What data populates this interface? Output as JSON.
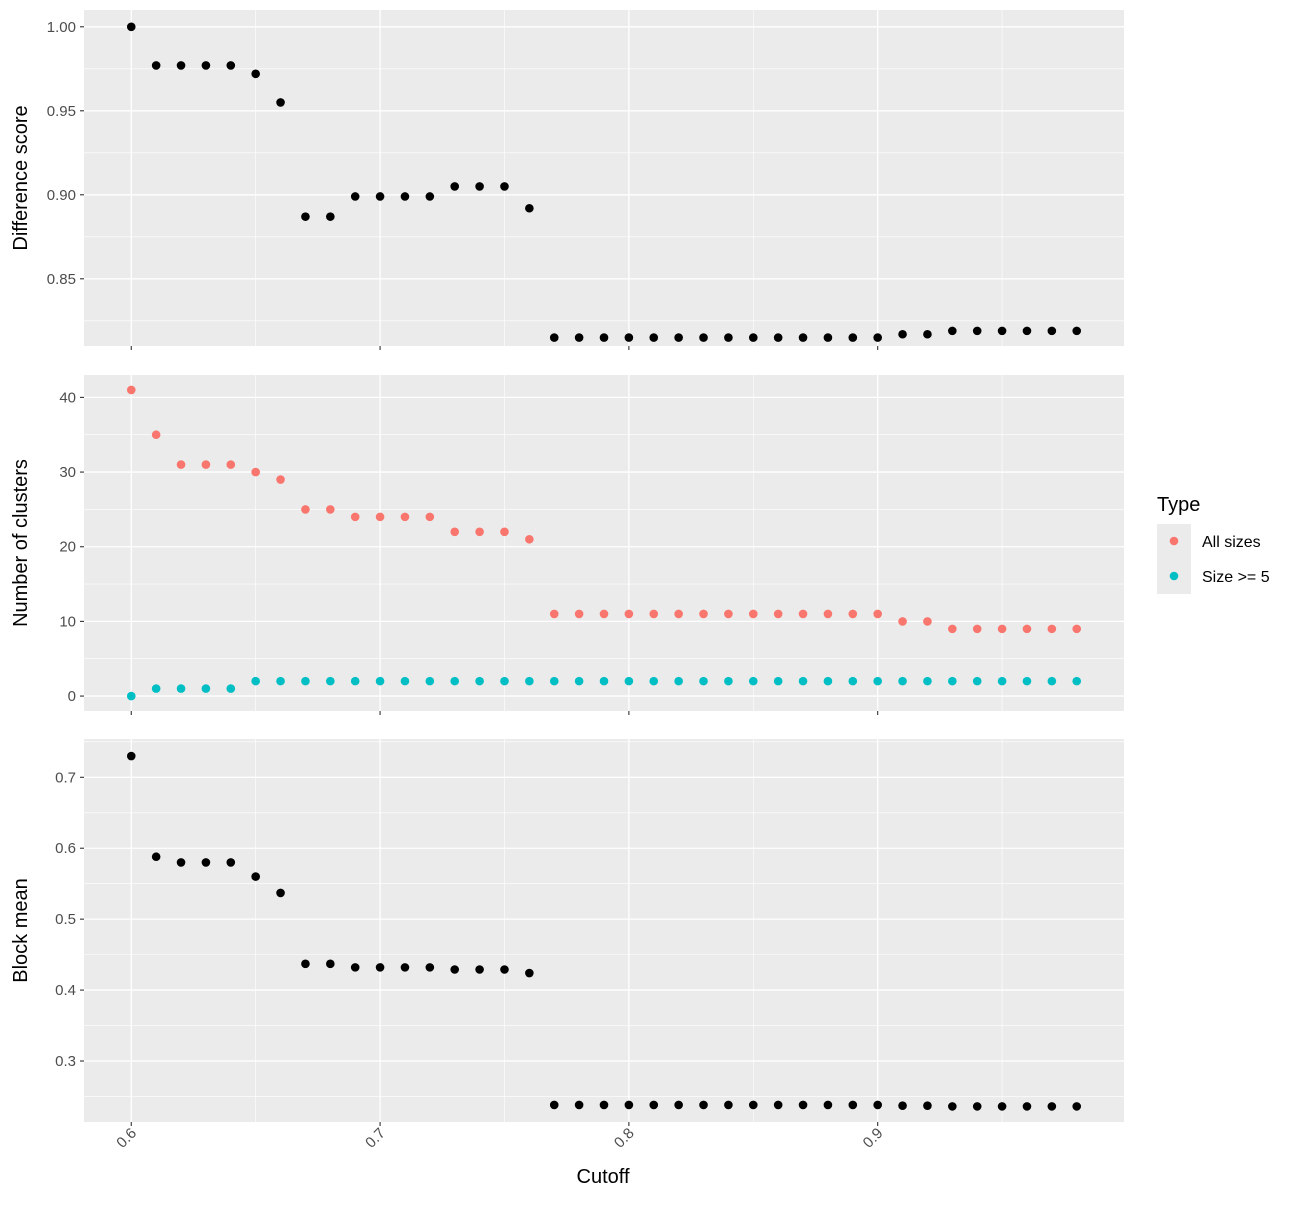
{
  "x_axis": {
    "label": "Cutoff",
    "lim": [
      0.581,
      0.999
    ],
    "ticks": [
      0.6,
      0.7,
      0.8,
      0.9
    ],
    "tick_labels": [
      "0.6",
      "0.7",
      "0.8",
      "0.9"
    ]
  },
  "legend": {
    "title": "Type",
    "items": [
      {
        "label": "All sizes",
        "color": "#F8766D"
      },
      {
        "label": "Size >= 5",
        "color": "#00BFC4"
      }
    ]
  },
  "chart_data": [
    {
      "type": "scatter",
      "panel": "difference",
      "ylabel": "Difference score",
      "ylim": [
        0.81,
        1.01
      ],
      "yticks": [
        0.85,
        0.9,
        0.95,
        1.0
      ],
      "ytick_labels": [
        "0.85",
        "0.90",
        "0.95",
        "1.00"
      ],
      "x": [
        0.6,
        0.61,
        0.62,
        0.63,
        0.64,
        0.65,
        0.66,
        0.67,
        0.68,
        0.69,
        0.7,
        0.71,
        0.72,
        0.73,
        0.74,
        0.75,
        0.76,
        0.77,
        0.78,
        0.79,
        0.8,
        0.81,
        0.82,
        0.83,
        0.84,
        0.85,
        0.86,
        0.87,
        0.88,
        0.89,
        0.9,
        0.91,
        0.92,
        0.93,
        0.94,
        0.95,
        0.96,
        0.97,
        0.98
      ],
      "series": [
        {
          "color": "#000000",
          "values": [
            1.0,
            0.977,
            0.977,
            0.977,
            0.977,
            0.972,
            0.955,
            0.887,
            0.887,
            0.899,
            0.899,
            0.899,
            0.899,
            0.905,
            0.905,
            0.905,
            0.892,
            0.815,
            0.815,
            0.815,
            0.815,
            0.815,
            0.815,
            0.815,
            0.815,
            0.815,
            0.815,
            0.815,
            0.815,
            0.815,
            0.815,
            0.817,
            0.817,
            0.819,
            0.819,
            0.819,
            0.819,
            0.819,
            0.819
          ]
        }
      ]
    },
    {
      "type": "scatter",
      "panel": "clusters",
      "ylabel": "Number of clusters",
      "ylim": [
        -2,
        43
      ],
      "yticks": [
        0,
        10,
        20,
        30,
        40
      ],
      "ytick_labels": [
        "0",
        "10",
        "20",
        "30",
        "40"
      ],
      "x": [
        0.6,
        0.61,
        0.62,
        0.63,
        0.64,
        0.65,
        0.66,
        0.67,
        0.68,
        0.69,
        0.7,
        0.71,
        0.72,
        0.73,
        0.74,
        0.75,
        0.76,
        0.77,
        0.78,
        0.79,
        0.8,
        0.81,
        0.82,
        0.83,
        0.84,
        0.85,
        0.86,
        0.87,
        0.88,
        0.89,
        0.9,
        0.91,
        0.92,
        0.93,
        0.94,
        0.95,
        0.96,
        0.97,
        0.98
      ],
      "series": [
        {
          "name": "All sizes",
          "color": "#F8766D",
          "values": [
            41,
            35,
            31,
            31,
            31,
            30,
            29,
            25,
            25,
            24,
            24,
            24,
            24,
            22,
            22,
            22,
            21,
            11,
            11,
            11,
            11,
            11,
            11,
            11,
            11,
            11,
            11,
            11,
            11,
            11,
            11,
            10,
            10,
            9,
            9,
            9,
            9,
            9,
            9
          ]
        },
        {
          "name": "Size >= 5",
          "color": "#00BFC4",
          "values": [
            0,
            1,
            1,
            1,
            1,
            2,
            2,
            2,
            2,
            2,
            2,
            2,
            2,
            2,
            2,
            2,
            2,
            2,
            2,
            2,
            2,
            2,
            2,
            2,
            2,
            2,
            2,
            2,
            2,
            2,
            2,
            2,
            2,
            2,
            2,
            2,
            2,
            2,
            2
          ]
        }
      ]
    },
    {
      "type": "scatter",
      "panel": "block-mean",
      "ylabel": "Block mean",
      "ylim": [
        0.214,
        0.754
      ],
      "yticks": [
        0.3,
        0.4,
        0.5,
        0.6,
        0.7
      ],
      "ytick_labels": [
        "0.3",
        "0.4",
        "0.5",
        "0.6",
        "0.7"
      ],
      "x": [
        0.6,
        0.61,
        0.62,
        0.63,
        0.64,
        0.65,
        0.66,
        0.67,
        0.68,
        0.69,
        0.7,
        0.71,
        0.72,
        0.73,
        0.74,
        0.75,
        0.76,
        0.77,
        0.78,
        0.79,
        0.8,
        0.81,
        0.82,
        0.83,
        0.84,
        0.85,
        0.86,
        0.87,
        0.88,
        0.89,
        0.9,
        0.91,
        0.92,
        0.93,
        0.94,
        0.95,
        0.96,
        0.97,
        0.98
      ],
      "series": [
        {
          "color": "#000000",
          "values": [
            0.73,
            0.588,
            0.58,
            0.58,
            0.58,
            0.56,
            0.537,
            0.437,
            0.437,
            0.432,
            0.432,
            0.432,
            0.432,
            0.429,
            0.429,
            0.429,
            0.424,
            0.238,
            0.238,
            0.238,
            0.238,
            0.238,
            0.238,
            0.238,
            0.238,
            0.238,
            0.238,
            0.238,
            0.238,
            0.238,
            0.238,
            0.237,
            0.237,
            0.236,
            0.236,
            0.236,
            0.236,
            0.236,
            0.236
          ]
        }
      ]
    }
  ]
}
